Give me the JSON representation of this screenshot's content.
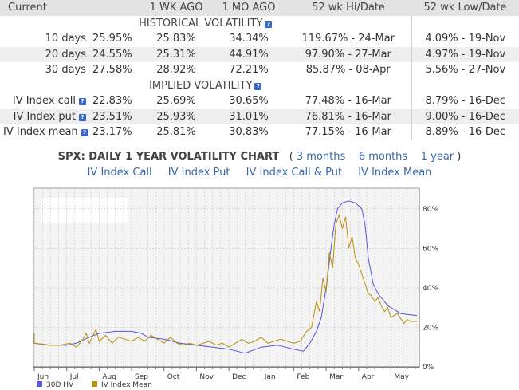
{
  "table": {
    "headers": [
      "Current",
      "1 WK AGO",
      "1 MO AGO",
      "52 wk Hi/Date",
      "52 wk Low/Date"
    ],
    "historical_title": "HISTORICAL VOLATILITY",
    "implied_title": "IMPLIED VOLATILITY",
    "historical_rows": [
      {
        "label": "10 days",
        "current": "25.95%",
        "wk": "25.83%",
        "mo": "34.34%",
        "hi": "119.67% - 24-Mar",
        "lo": "4.09% - 19-Nov"
      },
      {
        "label": "20 days",
        "current": "24.55%",
        "wk": "25.31%",
        "mo": "44.91%",
        "hi": "97.90% - 27-Mar",
        "lo": "4.97% - 19-Nov"
      },
      {
        "label": "30 days",
        "current": "27.58%",
        "wk": "28.92%",
        "mo": "72.21%",
        "hi": "85.87% - 08-Apr",
        "lo": "5.56% - 27-Nov"
      }
    ],
    "implied_rows": [
      {
        "label": "IV Index call",
        "current": "22.83%",
        "wk": "25.69%",
        "mo": "30.65%",
        "hi": "77.48% - 16-Mar",
        "lo": "8.79% - 16-Dec"
      },
      {
        "label": "IV Index put",
        "current": "23.51%",
        "wk": "25.93%",
        "mo": "31.01%",
        "hi": "76.81% - 16-Mar",
        "lo": "9.00% - 16-Dec"
      },
      {
        "label": "IV Index mean",
        "current": "23.17%",
        "wk": "25.81%",
        "mo": "30.83%",
        "hi": "77.15% - 16-Mar",
        "lo": "8.89% - 16-Dec"
      }
    ],
    "help_glyph": "?"
  },
  "chart_header": {
    "title": "SPX: DAILY 1 YEAR VOLATILITY CHART",
    "open_paren": "(",
    "close_paren": ")",
    "range_links": [
      "3 months",
      "6 months",
      "1 year"
    ],
    "series_links": [
      "IV Index Call",
      "IV Index Put",
      "IV Index Call & Put",
      "IV Index Mean"
    ]
  },
  "colors": {
    "hv_line": "#5555dd",
    "iv_line": "#b8900a",
    "link": "#3a68a8",
    "grid": "#bbbbbb",
    "plot_bg": "#f4f4f4"
  },
  "chart_data": {
    "type": "line",
    "title": "SPX: DAILY 1 YEAR VOLATILITY CHART",
    "x_tick_labels": [
      "Jun",
      "Jul",
      "Aug",
      "Sep",
      "Oct",
      "Nov",
      "Dec",
      "Jan",
      "Feb",
      "Mar",
      "Apr",
      "May"
    ],
    "x_range_months": [
      0,
      11.85
    ],
    "y_ticks": [
      "0%",
      "20%",
      "40%",
      "60%",
      "80%"
    ],
    "ylim": [
      0,
      90
    ],
    "grid": true,
    "legend_position": "bottom-left",
    "series": [
      {
        "name": "30D HV",
        "points": [
          [
            -0.3,
            12
          ],
          [
            0,
            12
          ],
          [
            0.5,
            11
          ],
          [
            1,
            11
          ],
          [
            1.3,
            12
          ],
          [
            1.7,
            15
          ],
          [
            2,
            17
          ],
          [
            2.5,
            18
          ],
          [
            3,
            18
          ],
          [
            3.3,
            17
          ],
          [
            3.5,
            15
          ],
          [
            4,
            14
          ],
          [
            4.5,
            12
          ],
          [
            5,
            11
          ],
          [
            5.5,
            10
          ],
          [
            6,
            9
          ],
          [
            6.5,
            7
          ],
          [
            7,
            10
          ],
          [
            7.5,
            11
          ],
          [
            8,
            9
          ],
          [
            8.3,
            8
          ],
          [
            8.5,
            12
          ],
          [
            8.7,
            18
          ],
          [
            8.85,
            25
          ],
          [
            9,
            40
          ],
          [
            9.15,
            60
          ],
          [
            9.25,
            72
          ],
          [
            9.35,
            80
          ],
          [
            9.5,
            83
          ],
          [
            9.7,
            84
          ],
          [
            9.9,
            83
          ],
          [
            10.1,
            80
          ],
          [
            10.2,
            72
          ],
          [
            10.3,
            55
          ],
          [
            10.45,
            42
          ],
          [
            10.6,
            37
          ],
          [
            10.75,
            34
          ],
          [
            10.9,
            31
          ],
          [
            11.1,
            29
          ],
          [
            11.3,
            27
          ],
          [
            11.5,
            26.5
          ],
          [
            11.8,
            26
          ]
        ]
      },
      {
        "name": "IV Index Mean",
        "points": [
          [
            -0.3,
            17
          ],
          [
            -0.2,
            14
          ],
          [
            0,
            12
          ],
          [
            0.4,
            11
          ],
          [
            0.8,
            11
          ],
          [
            1.1,
            12
          ],
          [
            1.3,
            10
          ],
          [
            1.5,
            14
          ],
          [
            1.6,
            17
          ],
          [
            1.7,
            12
          ],
          [
            1.9,
            19
          ],
          [
            2,
            13
          ],
          [
            2.2,
            16
          ],
          [
            2.4,
            12
          ],
          [
            2.6,
            15
          ],
          [
            2.8,
            14
          ],
          [
            3,
            13
          ],
          [
            3.2,
            15
          ],
          [
            3.4,
            13
          ],
          [
            3.6,
            16
          ],
          [
            3.8,
            14
          ],
          [
            4,
            12
          ],
          [
            4.2,
            15
          ],
          [
            4.4,
            12
          ],
          [
            4.6,
            11
          ],
          [
            4.8,
            12
          ],
          [
            5,
            11
          ],
          [
            5.2,
            12
          ],
          [
            5.4,
            13
          ],
          [
            5.6,
            11
          ],
          [
            5.8,
            12
          ],
          [
            6,
            10
          ],
          [
            6.2,
            12
          ],
          [
            6.4,
            14
          ],
          [
            6.6,
            12
          ],
          [
            6.8,
            13
          ],
          [
            7,
            15
          ],
          [
            7.2,
            12
          ],
          [
            7.4,
            13
          ],
          [
            7.6,
            14
          ],
          [
            7.8,
            13
          ],
          [
            8,
            12
          ],
          [
            8.2,
            13
          ],
          [
            8.4,
            18
          ],
          [
            8.55,
            20
          ],
          [
            8.7,
            33
          ],
          [
            8.8,
            28
          ],
          [
            8.9,
            45
          ],
          [
            9.0,
            38
          ],
          [
            9.1,
            58
          ],
          [
            9.2,
            50
          ],
          [
            9.3,
            72
          ],
          [
            9.4,
            77
          ],
          [
            9.5,
            70
          ],
          [
            9.6,
            76
          ],
          [
            9.7,
            60
          ],
          [
            9.8,
            66
          ],
          [
            9.9,
            55
          ],
          [
            10,
            52
          ],
          [
            10.1,
            47
          ],
          [
            10.2,
            42
          ],
          [
            10.3,
            37
          ],
          [
            10.4,
            36
          ],
          [
            10.5,
            33
          ],
          [
            10.6,
            35
          ],
          [
            10.7,
            31
          ],
          [
            10.8,
            28
          ],
          [
            10.9,
            30
          ],
          [
            11,
            25
          ],
          [
            11.1,
            26
          ],
          [
            11.2,
            27
          ],
          [
            11.4,
            22
          ],
          [
            11.5,
            24
          ],
          [
            11.6,
            23
          ],
          [
            11.8,
            23
          ]
        ]
      }
    ]
  }
}
